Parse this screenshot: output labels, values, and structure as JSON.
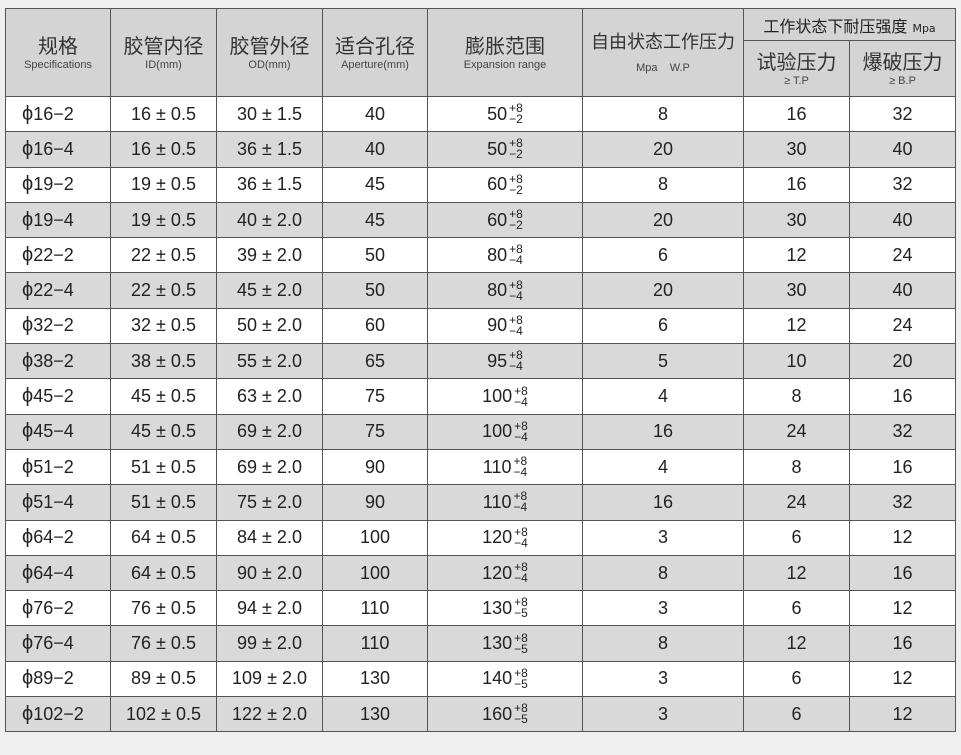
{
  "header": {
    "spec": {
      "cn": "规格",
      "en": "Specifications"
    },
    "id": {
      "cn": "胶管内径",
      "en": "ID(mm)"
    },
    "od": {
      "cn": "胶管外径",
      "en": "OD(mm)"
    },
    "aperture": {
      "cn": "适合孔径",
      "en": "Aperture(mm)"
    },
    "expansion": {
      "cn": "膨胀范围",
      "en": "Expansion range"
    },
    "wp": {
      "cn": "自由状态工作压力",
      "en": "Mpa    W.P"
    },
    "strength": {
      "cn": "工作状态下耐压强度",
      "unit": "Mpa"
    },
    "tp": {
      "cn": "试验压力",
      "en": "≥ T.P"
    },
    "bp": {
      "cn": "爆破压力",
      "en": "≥ B.P"
    }
  },
  "phi_symbol": "ϕ",
  "rows": [
    {
      "spec": "16−2",
      "id": "16 ± 0.5",
      "od": "30 ± 1.5",
      "ap": "40",
      "exp": "50",
      "up": "+8",
      "low": "−2",
      "wp": "8",
      "tp": "16",
      "bp": "32"
    },
    {
      "spec": "16−4",
      "id": "16 ± 0.5",
      "od": "36 ± 1.5",
      "ap": "40",
      "exp": "50",
      "up": "+8",
      "low": "−2",
      "wp": "20",
      "tp": "30",
      "bp": "40"
    },
    {
      "spec": "19−2",
      "id": "19 ± 0.5",
      "od": "36 ± 1.5",
      "ap": "45",
      "exp": "60",
      "up": "+8",
      "low": "−2",
      "wp": "8",
      "tp": "16",
      "bp": "32"
    },
    {
      "spec": "19−4",
      "id": "19 ± 0.5",
      "od": "40 ± 2.0",
      "ap": "45",
      "exp": "60",
      "up": "+8",
      "low": "−2",
      "wp": "20",
      "tp": "30",
      "bp": "40"
    },
    {
      "spec": "22−2",
      "id": "22 ± 0.5",
      "od": "39 ± 2.0",
      "ap": "50",
      "exp": "80",
      "up": "+8",
      "low": "−4",
      "wp": "6",
      "tp": "12",
      "bp": "24"
    },
    {
      "spec": "22−4",
      "id": "22 ± 0.5",
      "od": "45 ± 2.0",
      "ap": "50",
      "exp": "80",
      "up": "+8",
      "low": "−4",
      "wp": "20",
      "tp": "30",
      "bp": "40"
    },
    {
      "spec": "32−2",
      "id": "32 ± 0.5",
      "od": "50 ± 2.0",
      "ap": "60",
      "exp": "90",
      "up": "+8",
      "low": "−4",
      "wp": "6",
      "tp": "12",
      "bp": "24"
    },
    {
      "spec": "38−2",
      "id": "38 ± 0.5",
      "od": "55 ± 2.0",
      "ap": "65",
      "exp": "95",
      "up": "+8",
      "low": "−4",
      "wp": "5",
      "tp": "10",
      "bp": "20"
    },
    {
      "spec": "45−2",
      "id": "45 ± 0.5",
      "od": "63 ± 2.0",
      "ap": "75",
      "exp": "100",
      "up": "+8",
      "low": "−4",
      "wp": "4",
      "tp": "8",
      "bp": "16"
    },
    {
      "spec": "45−4",
      "id": "45 ± 0.5",
      "od": "69 ± 2.0",
      "ap": "75",
      "exp": "100",
      "up": "+8",
      "low": "−4",
      "wp": "16",
      "tp": "24",
      "bp": "32"
    },
    {
      "spec": "51−2",
      "id": "51 ± 0.5",
      "od": "69 ± 2.0",
      "ap": "90",
      "exp": "110",
      "up": "+8",
      "low": "−4",
      "wp": "4",
      "tp": "8",
      "bp": "16"
    },
    {
      "spec": "51−4",
      "id": "51 ± 0.5",
      "od": "75 ± 2.0",
      "ap": "90",
      "exp": "110",
      "up": "+8",
      "low": "−4",
      "wp": "16",
      "tp": "24",
      "bp": "32"
    },
    {
      "spec": "64−2",
      "id": "64 ± 0.5",
      "od": "84 ± 2.0",
      "ap": "100",
      "exp": "120",
      "up": "+8",
      "low": "−4",
      "wp": "3",
      "tp": "6",
      "bp": "12"
    },
    {
      "spec": "64−4",
      "id": "64 ± 0.5",
      "od": "90 ± 2.0",
      "ap": "100",
      "exp": "120",
      "up": "+8",
      "low": "−4",
      "wp": "8",
      "tp": "12",
      "bp": "16"
    },
    {
      "spec": "76−2",
      "id": "76 ± 0.5",
      "od": "94 ± 2.0",
      "ap": "110",
      "exp": "130",
      "up": "+8",
      "low": "−5",
      "wp": "3",
      "tp": "6",
      "bp": "12"
    },
    {
      "spec": "76−4",
      "id": "76 ± 0.5",
      "od": "99 ± 2.0",
      "ap": "110",
      "exp": "130",
      "up": "+8",
      "low": "−5",
      "wp": "8",
      "tp": "12",
      "bp": "16"
    },
    {
      "spec": "89−2",
      "id": "89 ± 0.5",
      "od": "109 ± 2.0",
      "ap": "130",
      "exp": "140",
      "up": "+8",
      "low": "−5",
      "wp": "3",
      "tp": "6",
      "bp": "12"
    },
    {
      "spec": "102−2",
      "id": "102 ± 0.5",
      "od": "122 ± 2.0",
      "ap": "130",
      "exp": "160",
      "up": "+8",
      "low": "−5",
      "wp": "3",
      "tp": "6",
      "bp": "12"
    }
  ]
}
